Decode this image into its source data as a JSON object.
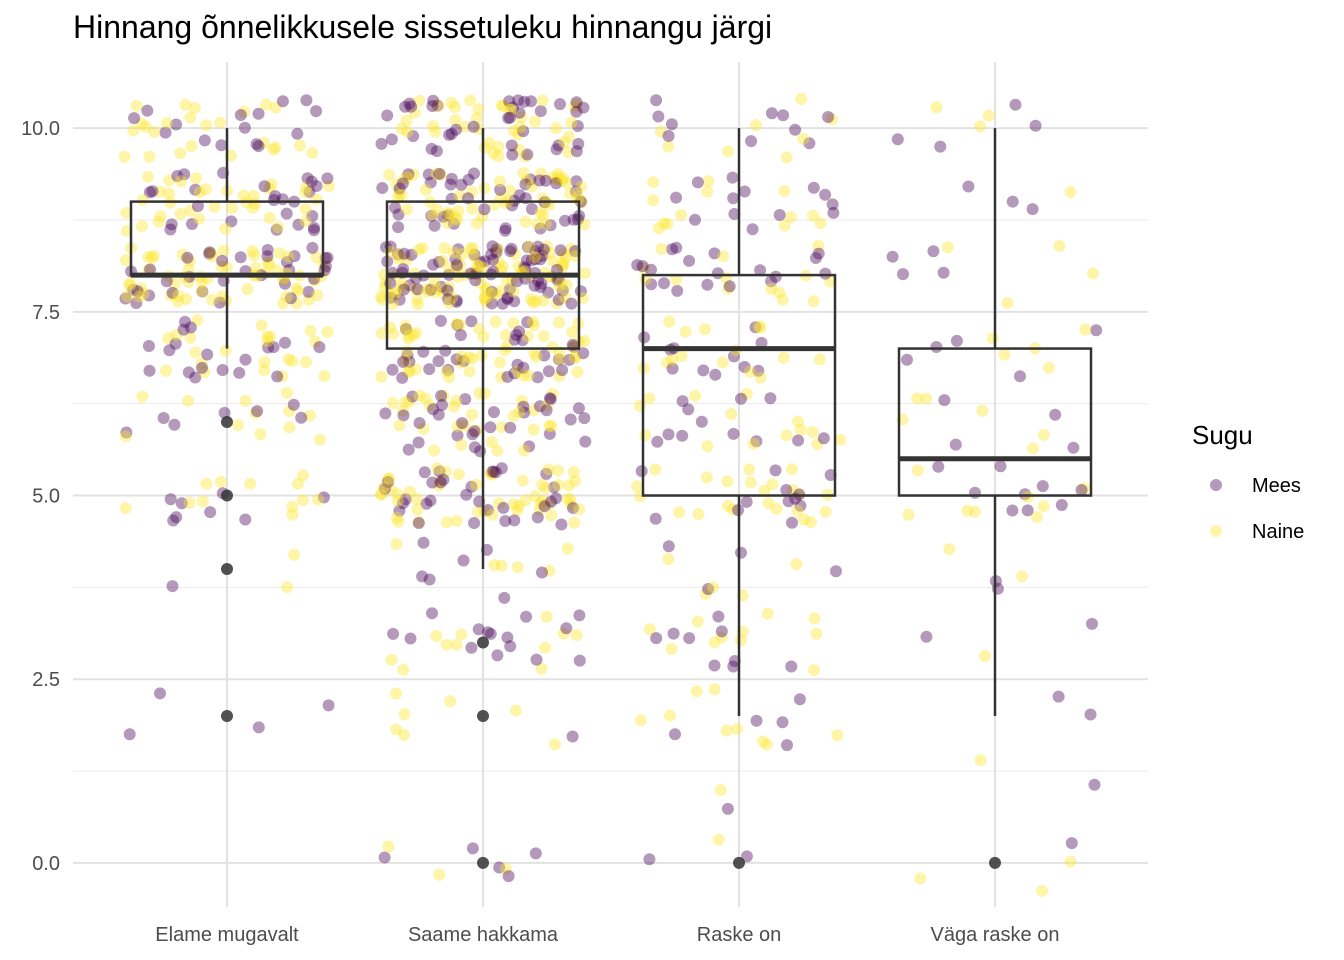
{
  "chart_data": {
    "type": "boxplot",
    "title": "Hinnang õnnelikkusele sissetuleku hinnangu järgi",
    "xlabel": "",
    "ylabel": "",
    "categories": [
      "Elame mugavalt",
      "Saame hakkama",
      "Raske on",
      "Väga raske on"
    ],
    "ylim": [
      -0.6,
      10.9
    ],
    "y_ticks": [
      0.0,
      2.5,
      5.0,
      7.5,
      10.0
    ],
    "y_tick_labels": [
      "0.0",
      "2.5",
      "5.0",
      "7.5",
      "10.0"
    ],
    "grid": true,
    "legend": {
      "title": "Sugu",
      "position": "right",
      "entries": [
        {
          "name": "Mees",
          "color": "#440154"
        },
        {
          "name": "Naine",
          "color": "#FDE725"
        }
      ]
    },
    "boxes": [
      {
        "category": "Elame mugavalt",
        "whisker_low": 7,
        "q1": 8,
        "median": 8,
        "q3": 9,
        "whisker_high": 10,
        "outliers": [
          6,
          5,
          4,
          2
        ]
      },
      {
        "category": "Saame hakkama",
        "whisker_low": 4,
        "q1": 7,
        "median": 8,
        "q3": 9,
        "whisker_high": 10,
        "outliers": [
          3,
          2,
          0
        ]
      },
      {
        "category": "Raske on",
        "whisker_low": 2,
        "q1": 5,
        "median": 7,
        "q3": 8,
        "whisker_high": 10,
        "outliers": [
          0
        ]
      },
      {
        "category": "Väga raske on",
        "whisker_low": 2,
        "q1": 5,
        "median": 5.5,
        "q3": 7,
        "whisker_high": 10,
        "outliers": [
          0
        ]
      }
    ],
    "jitter_points": [
      {
        "category": "Elame mugavalt",
        "n_approx": 320,
        "distribution": {
          "10": 0.12,
          "9": 0.2,
          "8": 0.3,
          "7": 0.13,
          "6": 0.06,
          "5": 0.06,
          "4": 0.01,
          "2": 0.01
        },
        "female_share": 0.6,
        "mees_extra": [
          [
            -0.38,
            1.75
          ],
          [
            0.31,
            10.38
          ],
          [
            -0.21,
            4.66
          ]
        ]
      },
      {
        "category": "Saame hakkama",
        "n_approx": 650,
        "distribution": {
          "10": 0.12,
          "9": 0.16,
          "8": 0.27,
          "7": 0.14,
          "6": 0.1,
          "5": 0.13,
          "4": 0.02,
          "3": 0.04,
          "2": 0.01,
          "1": 0.0,
          "0": 0.01
        },
        "female_share": 0.55,
        "mees_extra": [
          [
            0.1,
            -0.18
          ],
          [
            0.35,
            1.72
          ]
        ]
      },
      {
        "category": "Raske on",
        "n_approx": 220,
        "distribution": {
          "10": 0.08,
          "9": 0.12,
          "8": 0.15,
          "7": 0.12,
          "6": 0.12,
          "5": 0.16,
          "4": 0.04,
          "3": 0.09,
          "2": 0.06,
          "1": 0.01,
          "0": 0.01
        },
        "female_share": 0.55,
        "mees_extra": [
          [
            -0.35,
            0.05
          ],
          [
            -0.25,
            1.75
          ]
        ]
      },
      {
        "category": "Väga raske on",
        "n_approx": 70,
        "distribution": {
          "10": 0.1,
          "9": 0.06,
          "8": 0.1,
          "7": 0.14,
          "6": 0.14,
          "5": 0.24,
          "4": 0.06,
          "3": 0.04,
          "2": 0.03,
          "1": 0.03,
          "0": 0.04
        },
        "female_share": 0.45,
        "mees_extra": [
          [
            0.3,
            0.27
          ],
          [
            -0.4,
            8.25
          ]
        ]
      }
    ]
  }
}
